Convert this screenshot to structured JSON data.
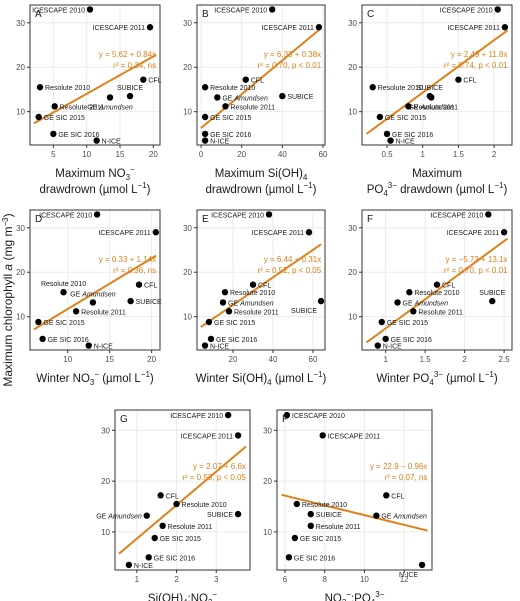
{
  "figure": {
    "ylabel_main": "Maximum chlorophyll",
    "ylabel_var": "a",
    "ylabel_units": " (mg m",
    "ylabel_sup": "−3",
    "ylabel_close": ")"
  },
  "colors": {
    "fit": "#e0801a",
    "point": "#000000",
    "grid": "#ebebeb",
    "frame": "#333333",
    "text": "#1a1a1a"
  },
  "chart_data": [
    {
      "id": "A",
      "type": "scatter",
      "xlim": [
        1.5,
        21
      ],
      "ylim": [
        2.5,
        34
      ],
      "xticks": [
        5,
        10,
        15,
        20
      ],
      "yticks": [
        10,
        20,
        30
      ],
      "xlabel_lines": [
        [
          {
            "t": "Maximum NO"
          },
          {
            "t": "3",
            "sub": 1
          },
          {
            "t": "−",
            "sup": 1
          }
        ],
        [
          {
            "t": "drawdrown (µmol L"
          },
          {
            "t": "−1",
            "sup": 1
          },
          {
            "t": ")"
          }
        ]
      ],
      "annot_lines": [
        "y = 5.62 + 0.84x",
        "r² = 0.34, ns"
      ],
      "annot_pos": "right",
      "fit": [
        5.62,
        0.84
      ],
      "points": [
        {
          "x": 10.5,
          "y": 33,
          "label": "ICESCAPE 2010",
          "lp": "left"
        },
        {
          "x": 19.5,
          "y": 29,
          "label": "ICESCAPE 2011",
          "lp": "left"
        },
        {
          "x": 18.5,
          "y": 17.2,
          "label": "CFL",
          "lp": "right"
        },
        {
          "x": 3.0,
          "y": 15.5,
          "label": "Resolute 2010",
          "lp": "right"
        },
        {
          "x": 16.5,
          "y": 13.5,
          "label": "SUBICE",
          "lp": "above"
        },
        {
          "x": 13.5,
          "y": 13.2,
          "label": "GE Amundsen",
          "lp": "below"
        },
        {
          "x": 5.2,
          "y": 11.2,
          "label": "Resolute 2011",
          "lp": "right"
        },
        {
          "x": 2.8,
          "y": 8.8,
          "label": "GE SIC 2015",
          "lp": "right"
        },
        {
          "x": 5.0,
          "y": 5.0,
          "label": "GE SIC 2016",
          "lp": "right"
        },
        {
          "x": 11.5,
          "y": 3.5,
          "label": "N-ICE",
          "lp": "right"
        }
      ]
    },
    {
      "id": "B",
      "type": "scatter",
      "xlim": [
        -2,
        61
      ],
      "ylim": [
        2.5,
        34
      ],
      "xticks": [
        0,
        20,
        40,
        60
      ],
      "yticks": [
        10,
        20,
        30
      ],
      "xlabel_lines": [
        [
          {
            "t": "Maximum Si(OH)"
          },
          {
            "t": "4",
            "sub": 1
          }
        ],
        [
          {
            "t": "drawdrown (µmol L"
          },
          {
            "t": "−1",
            "sup": 1
          },
          {
            "t": ")"
          }
        ]
      ],
      "annot_lines": [
        "y = 6.33 + 0.38x",
        "r² = 0.70, p < 0.01"
      ],
      "annot_pos": "right",
      "fit": [
        6.33,
        0.38
      ],
      "points": [
        {
          "x": 35,
          "y": 33,
          "label": "ICESCAPE 2010",
          "lp": "left"
        },
        {
          "x": 58,
          "y": 29,
          "label": "ICESCAPE 2011",
          "lp": "left"
        },
        {
          "x": 22,
          "y": 17.2,
          "label": "CFL",
          "lp": "right"
        },
        {
          "x": 2,
          "y": 15.5,
          "label": "Resolute 2010",
          "lp": "right"
        },
        {
          "x": 40,
          "y": 13.5,
          "label": "SUBICE",
          "lp": "right"
        },
        {
          "x": 8,
          "y": 13.2,
          "label": "GE Amundsen",
          "lp": "right"
        },
        {
          "x": 12,
          "y": 11.2,
          "label": "Resolute 2011",
          "lp": "right"
        },
        {
          "x": 2,
          "y": 8.8,
          "label": "GE SIC 2015",
          "lp": "right"
        },
        {
          "x": 2,
          "y": 5.0,
          "label": "GE SIC 2016",
          "lp": "right"
        },
        {
          "x": 2,
          "y": 3.5,
          "label": "N-ICE",
          "lp": "right"
        }
      ]
    },
    {
      "id": "C",
      "type": "scatter",
      "xlim": [
        0.15,
        2.25
      ],
      "ylim": [
        2.5,
        34
      ],
      "xticks": [
        0.5,
        1.0,
        1.5,
        2.0
      ],
      "yticks": [
        10,
        20,
        30
      ],
      "xlabel_lines": [
        [
          {
            "t": "Maximum"
          }
        ],
        [
          {
            "t": "PO"
          },
          {
            "t": "4",
            "sub": 1
          },
          {
            "t": "3−",
            "sup": 1
          },
          {
            "t": " drawdown (µmol L"
          },
          {
            "t": "−1",
            "sup": 1
          },
          {
            "t": ")"
          }
        ]
      ],
      "annot_lines": [
        "y = 2.49 + 11.8x",
        "r² = 0.74, p < 0.01"
      ],
      "annot_pos": "right",
      "fit": [
        2.49,
        11.8
      ],
      "points": [
        {
          "x": 2.05,
          "y": 33,
          "label": "ICESCAPE 2010",
          "lp": "left"
        },
        {
          "x": 2.15,
          "y": 29,
          "label": "ICESCAPE 2011",
          "lp": "left"
        },
        {
          "x": 1.5,
          "y": 17.2,
          "label": "CFL",
          "lp": "right"
        },
        {
          "x": 0.3,
          "y": 15.5,
          "label": "Resolute 2010",
          "lp": "right"
        },
        {
          "x": 1.1,
          "y": 13.5,
          "label": "SUBICE",
          "lp": "above"
        },
        {
          "x": 1.12,
          "y": 13.2,
          "label": "GE Amundsen",
          "lp": "below"
        },
        {
          "x": 0.8,
          "y": 11.2,
          "label": "Resolute 2011",
          "lp": "right"
        },
        {
          "x": 0.4,
          "y": 8.8,
          "label": "GE SIC 2015",
          "lp": "right"
        },
        {
          "x": 0.5,
          "y": 5.0,
          "label": "GE SIC 2016",
          "lp": "right"
        },
        {
          "x": 0.55,
          "y": 3.5,
          "label": "N-ICE",
          "lp": "right"
        }
      ]
    },
    {
      "id": "D",
      "type": "scatter",
      "xlim": [
        5.5,
        21
      ],
      "ylim": [
        2.5,
        34
      ],
      "xticks": [
        10,
        15,
        20
      ],
      "yticks": [
        10,
        20,
        30
      ],
      "xlabel_lines": [
        [
          {
            "t": "Winter NO"
          },
          {
            "t": "3",
            "sub": 1
          },
          {
            "t": "−",
            "sup": 1
          },
          {
            "t": " (µmol L"
          },
          {
            "t": "−1",
            "sup": 1
          },
          {
            "t": ")"
          }
        ]
      ],
      "annot_lines": [
        "y = 0.33 + 1.14x",
        "r² = 0.36, ns"
      ],
      "annot_pos": "right",
      "fit": [
        0.33,
        1.14
      ],
      "points": [
        {
          "x": 13.5,
          "y": 33,
          "label": "ICESCAPE 2010",
          "lp": "left"
        },
        {
          "x": 20.5,
          "y": 29,
          "label": "ICESCAPE 2011",
          "lp": "left"
        },
        {
          "x": 18.5,
          "y": 17.2,
          "label": "CFL",
          "lp": "right"
        },
        {
          "x": 9.5,
          "y": 15.5,
          "label": "Resolute 2010",
          "lp": "above"
        },
        {
          "x": 17.5,
          "y": 13.5,
          "label": "SUBICE",
          "lp": "right"
        },
        {
          "x": 13.0,
          "y": 13.2,
          "label": "GE Amundsen",
          "lp": "above"
        },
        {
          "x": 11.0,
          "y": 11.2,
          "label": "Resolute 2011",
          "lp": "right"
        },
        {
          "x": 6.5,
          "y": 8.8,
          "label": "GE SIC 2015",
          "lp": "right"
        },
        {
          "x": 7.0,
          "y": 5.0,
          "label": "GE SIC 2016",
          "lp": "right"
        },
        {
          "x": 12.5,
          "y": 3.5,
          "label": "N-ICE",
          "lp": "right"
        }
      ]
    },
    {
      "id": "E",
      "type": "scatter",
      "xlim": [
        2,
        66
      ],
      "ylim": [
        2.5,
        34
      ],
      "xticks": [
        20,
        40,
        60
      ],
      "yticks": [
        10,
        20,
        30
      ],
      "xlabel_lines": [
        [
          {
            "t": "Winter Si(OH)"
          },
          {
            "t": "4",
            "sub": 1
          },
          {
            "t": " (µmol L"
          },
          {
            "t": "−1",
            "sup": 1
          },
          {
            "t": ")"
          }
        ]
      ],
      "annot_lines": [
        "y = 6.44 + 0.31x",
        "r² = 0.52, p < 0.05"
      ],
      "annot_pos": "right",
      "fit": [
        6.44,
        0.31
      ],
      "points": [
        {
          "x": 38,
          "y": 33,
          "label": "ICESCAPE 2010",
          "lp": "left"
        },
        {
          "x": 58,
          "y": 29,
          "label": "ICESCAPE 2011",
          "lp": "left"
        },
        {
          "x": 30,
          "y": 17.2,
          "label": "CFL",
          "lp": "right"
        },
        {
          "x": 16,
          "y": 15.5,
          "label": "Resolute 2010",
          "lp": "right"
        },
        {
          "x": 64,
          "y": 13.5,
          "label": "SUBICE",
          "lp": "below-left"
        },
        {
          "x": 15,
          "y": 13.2,
          "label": "GE Amundsen",
          "lp": "right"
        },
        {
          "x": 18,
          "y": 11.2,
          "label": "Resolute 2011",
          "lp": "right"
        },
        {
          "x": 8,
          "y": 8.8,
          "label": "GE SIC 2015",
          "lp": "right"
        },
        {
          "x": 9,
          "y": 5.0,
          "label": "GE SIC 2016",
          "lp": "right"
        },
        {
          "x": 6,
          "y": 3.5,
          "label": "N-ICE",
          "lp": "right"
        }
      ]
    },
    {
      "id": "F",
      "type": "scatter",
      "xlim": [
        0.7,
        2.6
      ],
      "ylim": [
        2.5,
        34
      ],
      "xticks": [
        1.0,
        1.5,
        2.0,
        2.5
      ],
      "yticks": [
        10,
        20,
        30
      ],
      "xlabel_lines": [
        [
          {
            "t": "Winter PO"
          },
          {
            "t": "4",
            "sub": 1
          },
          {
            "t": "3−",
            "sup": 1
          },
          {
            "t": " (µmol L"
          },
          {
            "t": "−1",
            "sup": 1
          },
          {
            "t": ")"
          }
        ]
      ],
      "annot_lines": [
        "y = −5.73 + 13.1x",
        "r² = 0.70, p < 0.01"
      ],
      "annot_pos": "right",
      "fit": [
        -5.73,
        13.1
      ],
      "points": [
        {
          "x": 2.3,
          "y": 33,
          "label": "ICESCAPE 2010",
          "lp": "left"
        },
        {
          "x": 2.5,
          "y": 29,
          "label": "ICESCAPE 2011",
          "lp": "left"
        },
        {
          "x": 1.65,
          "y": 17.2,
          "label": "CFL",
          "lp": "right"
        },
        {
          "x": 1.3,
          "y": 15.5,
          "label": "Resolute 2010",
          "lp": "right"
        },
        {
          "x": 2.35,
          "y": 13.5,
          "label": "SUBICE",
          "lp": "above"
        },
        {
          "x": 1.15,
          "y": 13.2,
          "label": "GE Amundsen",
          "lp": "right"
        },
        {
          "x": 1.35,
          "y": 11.2,
          "label": "Resolute 2011",
          "lp": "right"
        },
        {
          "x": 0.95,
          "y": 8.8,
          "label": "GE SIC 2015",
          "lp": "right"
        },
        {
          "x": 1.0,
          "y": 5.0,
          "label": "GE SIC 2016",
          "lp": "right"
        },
        {
          "x": 0.9,
          "y": 3.5,
          "label": "N-ICE",
          "lp": "right"
        }
      ]
    },
    {
      "id": "G",
      "type": "scatter",
      "xlim": [
        0.45,
        3.85
      ],
      "ylim": [
        2.5,
        34
      ],
      "xticks": [
        1,
        2,
        3
      ],
      "yticks": [
        10,
        20,
        30
      ],
      "xlabel_lines": [
        [
          {
            "t": "Si(OH)"
          },
          {
            "t": "4",
            "sub": 1
          },
          {
            "t": ":NO"
          },
          {
            "t": "3",
            "sub": 1
          },
          {
            "t": "−",
            "sup": 1
          }
        ]
      ],
      "annot_lines": [
        "y = 2.07 + 6.6x",
        "r² = 0.53, p < 0.05"
      ],
      "annot_pos": "right",
      "fit": [
        2.07,
        6.6
      ],
      "points": [
        {
          "x": 3.3,
          "y": 33,
          "label": "ICESCAPE 2010",
          "lp": "left"
        },
        {
          "x": 3.55,
          "y": 29,
          "label": "ICESCAPE 2011",
          "lp": "left"
        },
        {
          "x": 1.6,
          "y": 17.2,
          "label": "CFL",
          "lp": "right"
        },
        {
          "x": 2.0,
          "y": 15.5,
          "label": "Resolute 2010",
          "lp": "right"
        },
        {
          "x": 3.55,
          "y": 13.5,
          "label": "SUBICE",
          "lp": "left"
        },
        {
          "x": 1.25,
          "y": 13.2,
          "label": "GE Amundsen",
          "lp": "left"
        },
        {
          "x": 1.65,
          "y": 11.2,
          "label": "Resolute 2011",
          "lp": "right"
        },
        {
          "x": 1.45,
          "y": 8.8,
          "label": "GE SIC 2015",
          "lp": "right"
        },
        {
          "x": 1.3,
          "y": 5.0,
          "label": "GE SIC 2016",
          "lp": "right"
        },
        {
          "x": 0.8,
          "y": 3.5,
          "label": "N-ICE",
          "lp": "right"
        }
      ]
    },
    {
      "id": "F",
      "type": "scatter",
      "xlim": [
        5.6,
        13.4
      ],
      "ylim": [
        2.5,
        34
      ],
      "xticks": [
        6,
        8,
        10,
        12
      ],
      "yticks": [
        10,
        20,
        30
      ],
      "xlabel_lines": [
        [
          {
            "t": "NO"
          },
          {
            "t": "3",
            "sub": 1
          },
          {
            "t": "−",
            "sup": 1
          },
          {
            "t": ":PO"
          },
          {
            "t": "4",
            "sub": 1
          },
          {
            "t": "3−",
            "sup": 1
          }
        ]
      ],
      "annot_lines": [
        "y = 22.9 − 0.96x",
        "r² = 0.07, ns"
      ],
      "annot_pos": "right",
      "fit": [
        22.9,
        -0.96
      ],
      "points": [
        {
          "x": 6.1,
          "y": 33,
          "label": "ICESCAPE 2010",
          "lp": "right"
        },
        {
          "x": 7.9,
          "y": 29,
          "label": "ICESCAPE 2011",
          "lp": "right"
        },
        {
          "x": 11.1,
          "y": 17.2,
          "label": "CFL",
          "lp": "right"
        },
        {
          "x": 6.6,
          "y": 15.5,
          "label": "Resolute 2010",
          "lp": "right"
        },
        {
          "x": 7.3,
          "y": 13.5,
          "label": "SUBICE",
          "lp": "right"
        },
        {
          "x": 10.6,
          "y": 13.2,
          "label": "GE Amundsen",
          "lp": "right"
        },
        {
          "x": 7.3,
          "y": 11.2,
          "label": "Resolute 2011",
          "lp": "right"
        },
        {
          "x": 6.5,
          "y": 8.8,
          "label": "GE SIC 2015",
          "lp": "right"
        },
        {
          "x": 6.2,
          "y": 5.0,
          "label": "GE SIC 2016",
          "lp": "right"
        },
        {
          "x": 12.9,
          "y": 3.5,
          "label": "N-ICE",
          "lp": "below-left"
        }
      ]
    }
  ]
}
